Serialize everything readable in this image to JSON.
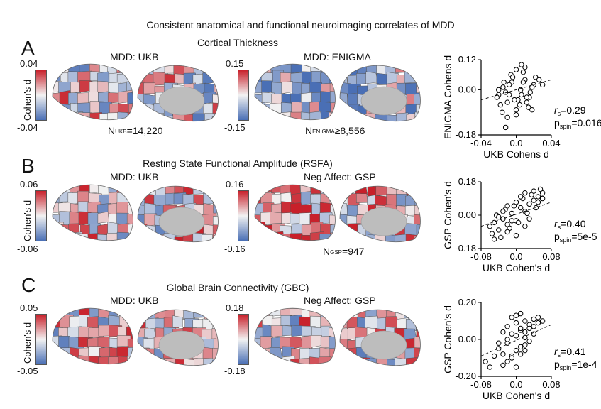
{
  "figure": {
    "title": "Consistent anatomical and functional neuroimaging correlates of MDD"
  },
  "panels": [
    {
      "letter": "A",
      "title": "Cortical Thickness",
      "left_map": {
        "label": "MDD: UKB",
        "cb_max": "0.04",
        "cb_min": "-0.04",
        "cb_label": "Cohen's d",
        "n_prefix": "N",
        "n_sub": "UKB",
        "n_value": "=14,220"
      },
      "right_map": {
        "label": "MDD: ENIGMA",
        "cb_max": "0.15",
        "cb_min": "-0.15",
        "n_prefix": "N",
        "n_sub": "ENIGMA",
        "n_value": "≥8,556"
      },
      "scatter": {
        "ylabel": "ENIGMA Cohens d",
        "xlabel": "UKB Cohens d",
        "yticks": [
          "0.12",
          "0.00",
          "-0.18"
        ],
        "xticks": [
          "-0.04",
          "0.0",
          "0.04"
        ],
        "rs": "=0.29",
        "pspin": "=0.016"
      }
    },
    {
      "letter": "B",
      "title": "Resting State Functional Amplitude (RSFA)",
      "left_map": {
        "label": "MDD: UKB",
        "cb_max": "0.06",
        "cb_min": "-0.06",
        "cb_label": "Cohen's d"
      },
      "right_map": {
        "label": "Neg Affect: GSP",
        "cb_max": "0.16",
        "cb_min": "-0.16",
        "n_prefix": "N",
        "n_sub": "GSP",
        "n_value": "=947"
      },
      "scatter": {
        "ylabel": "GSP Cohen's d",
        "xlabel": "UKB Cohen's d",
        "yticks": [
          "0.18",
          "0.00",
          "-0.18"
        ],
        "xticks": [
          "-0.08",
          "0.0",
          "0.08"
        ],
        "rs": "=0.40",
        "pspin": "=5e-5"
      }
    },
    {
      "letter": "C",
      "title": "Global Brain Connectivity (GBC)",
      "left_map": {
        "label": "MDD: UKB",
        "cb_max": "0.05",
        "cb_min": "-0.05",
        "cb_label": "Cohen's d"
      },
      "right_map": {
        "label": "Neg Affect: GSP",
        "cb_max": "0.18",
        "cb_min": "-0.18"
      },
      "scatter": {
        "ylabel": "GSP Cohen's d",
        "xlabel": "UKB Cohen's d",
        "yticks": [
          "0.20",
          "0.00",
          "-0.20"
        ],
        "xticks": [
          "-0.08",
          "0.0",
          "0.08"
        ],
        "rs": "=0.41",
        "pspin": "=1e-4"
      }
    }
  ],
  "stat_labels": {
    "rs_symbol": "r",
    "rs_sub": "s",
    "p_symbol": "p",
    "p_sub": "spin"
  },
  "colors": {
    "neg": "#4a6fb5",
    "mid": "#f2f2f2",
    "pos": "#c8202a",
    "medial_wall": "#bdbdbd"
  },
  "chart_data": [
    {
      "type": "scatter",
      "title": "",
      "xlabel": "UKB Cohens d",
      "ylabel": "ENIGMA Cohens d",
      "xlim": [
        -0.04,
        0.04
      ],
      "ylim": [
        -0.18,
        0.12
      ],
      "x": [
        -0.02,
        -0.015,
        -0.01,
        -0.005,
        0.0,
        0.005,
        0.01,
        0.015,
        0.02,
        -0.018,
        -0.012,
        -0.006,
        0.002,
        0.008,
        0.014,
        0.022,
        -0.022,
        -0.016,
        -0.008,
        0.0,
        0.006,
        0.012,
        0.018,
        0.026,
        -0.01,
        -0.004,
        0.004,
        0.01,
        0.016,
        0.03,
        -0.014,
        -0.002,
        0.006,
        0.012,
        -0.02,
        -0.008,
        0.0,
        0.008,
        0.018,
        -0.012
      ],
      "y": [
        -0.02,
        0.01,
        -0.05,
        0.03,
        -0.08,
        0.0,
        0.04,
        -0.03,
        0.02,
        -0.06,
        -0.01,
        0.06,
        -0.04,
        0.03,
        -0.07,
        0.05,
        -0.03,
        -0.09,
        0.02,
        0.08,
        -0.02,
        -0.05,
        0.01,
        0.04,
        -0.11,
        0.05,
        -0.06,
        0.09,
        -0.01,
        0.02,
        0.03,
        -0.04,
        0.1,
        -0.03,
        0.0,
        -0.02,
        -0.1,
        0.07,
        -0.08,
        -0.15
      ],
      "trend": {
        "x": [
          -0.04,
          0.04
        ],
        "y": [
          -0.04,
          0.04
        ]
      },
      "annotations": [
        "r_s=0.29",
        "p_spin=0.016"
      ]
    },
    {
      "type": "scatter",
      "title": "",
      "xlabel": "UKB Cohen's d",
      "ylabel": "GSP Cohen's d",
      "xlim": [
        -0.08,
        0.08
      ],
      "ylim": [
        -0.18,
        0.18
      ],
      "x": [
        -0.06,
        -0.05,
        -0.04,
        -0.03,
        -0.02,
        -0.01,
        0.0,
        0.01,
        0.02,
        0.03,
        0.04,
        0.05,
        0.06,
        -0.055,
        -0.045,
        -0.035,
        -0.025,
        -0.015,
        -0.005,
        0.005,
        0.015,
        0.025,
        0.035,
        0.045,
        0.055,
        -0.04,
        -0.02,
        0.0,
        0.02,
        0.04,
        -0.03,
        -0.01,
        0.01,
        0.03,
        0.05,
        -0.05,
        -0.02,
        0.02,
        0.06,
        0.0
      ],
      "y": [
        -0.06,
        -0.04,
        -0.08,
        -0.02,
        -0.05,
        0.01,
        -0.03,
        0.04,
        0.02,
        0.06,
        0.08,
        0.1,
        0.12,
        -0.1,
        0.0,
        -0.12,
        0.03,
        -0.07,
        0.05,
        -0.04,
        0.09,
        0.01,
        0.11,
        0.04,
        0.14,
        -0.01,
        -0.09,
        0.07,
        -0.06,
        0.13,
        0.02,
        -0.03,
        0.1,
        -0.02,
        0.07,
        -0.13,
        0.05,
        0.12,
        0.09,
        -0.11
      ],
      "trend": {
        "x": [
          -0.08,
          0.08
        ],
        "y": [
          -0.06,
          0.07
        ]
      },
      "annotations": [
        "r_s=0.40",
        "p_spin=5e-5"
      ]
    },
    {
      "type": "scatter",
      "title": "",
      "xlabel": "UKB Cohen's d",
      "ylabel": "GSP Cohen's d",
      "xlim": [
        -0.08,
        0.08
      ],
      "ylim": [
        -0.2,
        0.2
      ],
      "x": [
        -0.07,
        -0.06,
        -0.05,
        -0.04,
        -0.03,
        -0.02,
        -0.01,
        0.0,
        0.01,
        0.02,
        0.03,
        0.04,
        0.05,
        -0.03,
        -0.02,
        -0.01,
        0.0,
        0.01,
        0.02,
        0.03,
        -0.02,
        -0.01,
        0.0,
        0.01,
        0.02,
        0.04,
        -0.03,
        0.0,
        0.02,
        0.05,
        -0.01,
        0.01,
        0.03,
        -0.04,
        0.0,
        0.02,
        -0.02,
        0.01,
        0.04,
        0.06
      ],
      "y": [
        -0.12,
        -0.15,
        -0.09,
        -0.05,
        -0.08,
        -0.02,
        0.03,
        -0.06,
        0.05,
        0.01,
        0.08,
        0.11,
        0.09,
        0.04,
        -0.12,
        0.12,
        0.02,
        -0.04,
        0.1,
        -0.01,
        0.07,
        -0.09,
        0.13,
        0.06,
        -0.06,
        0.03,
        -0.14,
        0.09,
        -0.03,
        0.12,
        -0.1,
        0.14,
        0.06,
        -0.02,
        -0.15,
        0.04,
        0.0,
        -0.08,
        0.07,
        0.1
      ],
      "trend": {
        "x": [
          -0.08,
          0.08
        ],
        "y": [
          -0.09,
          0.08
        ]
      },
      "annotations": [
        "r_s=0.41",
        "p_spin=1e-4"
      ]
    }
  ]
}
